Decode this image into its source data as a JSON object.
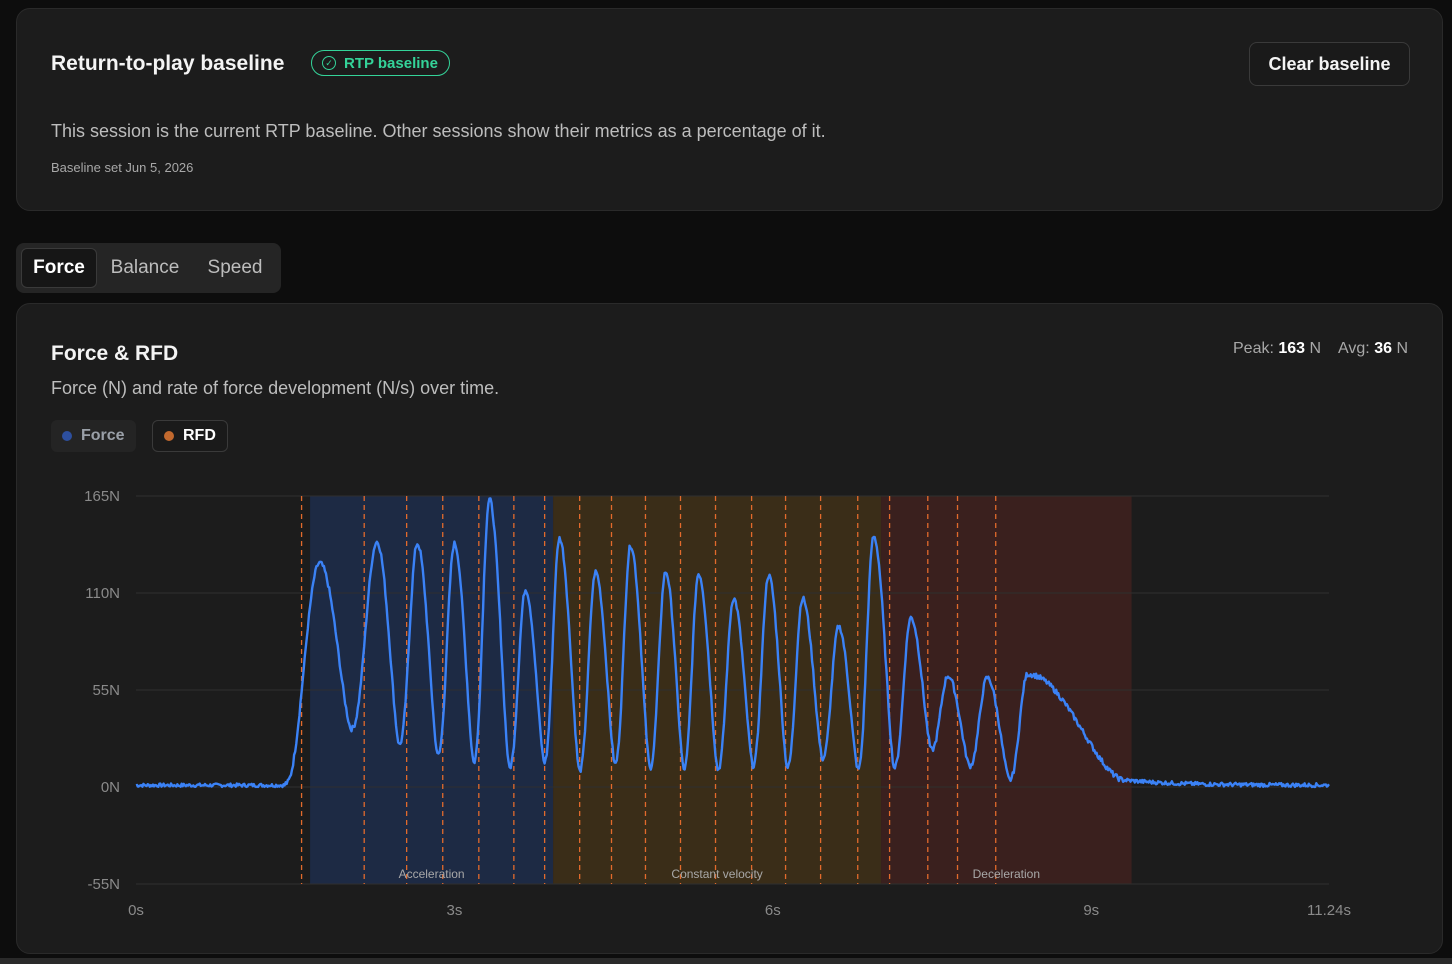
{
  "baseline": {
    "title": "Return-to-play baseline",
    "badge": "RTP baseline",
    "clear_button": "Clear baseline",
    "description": "This session is the current RTP baseline. Other sessions show their metrics as a percentage of it.",
    "date": "Baseline set Jun 5, 2026"
  },
  "tabs": [
    {
      "label": "Force",
      "active": true
    },
    {
      "label": "Balance",
      "active": false
    },
    {
      "label": "Speed",
      "active": false
    }
  ],
  "chart_card": {
    "title": "Force & RFD",
    "subtitle": "Force (N) and rate of force development (N/s) over time.",
    "peak_label": "Peak:",
    "peak_value": "163",
    "avg_label": "Avg:",
    "avg_value": "36",
    "unit": "N",
    "legend": [
      {
        "label": "Force",
        "color": "#2d4f9e",
        "enabled": false
      },
      {
        "label": "RFD",
        "color": "#c2692e",
        "enabled": true
      }
    ]
  },
  "colors": {
    "line": "#3b82f6",
    "marker": "#e26a2c",
    "acceleration": "#1d2a44",
    "constant_velocity": "#3a2d18",
    "deceleration": "#3a201e",
    "grid": "#2f2f2f"
  },
  "chart_data": {
    "type": "line",
    "x_unit": "s",
    "y_unit": "N",
    "xlim": [
      0,
      11.24
    ],
    "ylim": [
      -55,
      165
    ],
    "x_ticks": [
      "0s",
      "3s",
      "6s",
      "9s",
      "11.24s"
    ],
    "x_tick_values": [
      0,
      3,
      6,
      9,
      11.24
    ],
    "y_ticks": [
      "165N",
      "110N",
      "55N",
      "0N",
      "-55N"
    ],
    "y_tick_values": [
      165,
      110,
      55,
      0,
      -55
    ],
    "grid": true,
    "series": [
      {
        "name": "Force",
        "baseline_end": 1.45,
        "tail_start": 9.3,
        "peaks": [
          {
            "t": 1.73,
            "f": 127,
            "min_after": 33
          },
          {
            "t": 2.27,
            "f": 139,
            "min_after": 24
          },
          {
            "t": 2.65,
            "f": 138,
            "min_after": 18
          },
          {
            "t": 3.0,
            "f": 138,
            "min_after": 14
          },
          {
            "t": 3.33,
            "f": 163,
            "min_after": 11
          },
          {
            "t": 3.67,
            "f": 112,
            "min_after": 14
          },
          {
            "t": 3.99,
            "f": 141,
            "min_after": 9
          },
          {
            "t": 4.33,
            "f": 122,
            "min_after": 13
          },
          {
            "t": 4.66,
            "f": 137,
            "min_after": 11
          },
          {
            "t": 4.99,
            "f": 122,
            "min_after": 10
          },
          {
            "t": 5.3,
            "f": 121,
            "min_after": 10
          },
          {
            "t": 5.63,
            "f": 107,
            "min_after": 12
          },
          {
            "t": 5.96,
            "f": 120,
            "min_after": 11
          },
          {
            "t": 6.28,
            "f": 107,
            "min_after": 16
          },
          {
            "t": 6.62,
            "f": 91,
            "min_after": 10
          },
          {
            "t": 6.95,
            "f": 142,
            "min_after": 11
          },
          {
            "t": 7.3,
            "f": 96,
            "min_after": 21
          },
          {
            "t": 7.65,
            "f": 63,
            "min_after": 12
          },
          {
            "t": 8.02,
            "f": 62,
            "min_after": 4
          },
          {
            "t": 8.4,
            "f": 64,
            "min_after": 10
          }
        ]
      }
    ],
    "phases": [
      {
        "label": "Acceleration",
        "start": 1.64,
        "end": 3.93
      },
      {
        "label": "Constant velocity",
        "start": 3.93,
        "end": 7.02
      },
      {
        "label": "Deceleration",
        "start": 7.02,
        "end": 9.38
      }
    ],
    "markers": [
      1.56,
      2.15,
      2.55,
      2.89,
      3.23,
      3.56,
      3.85,
      4.18,
      4.48,
      4.8,
      5.13,
      5.46,
      5.8,
      6.12,
      6.45,
      6.8,
      7.1,
      7.46,
      7.74,
      8.1
    ]
  }
}
